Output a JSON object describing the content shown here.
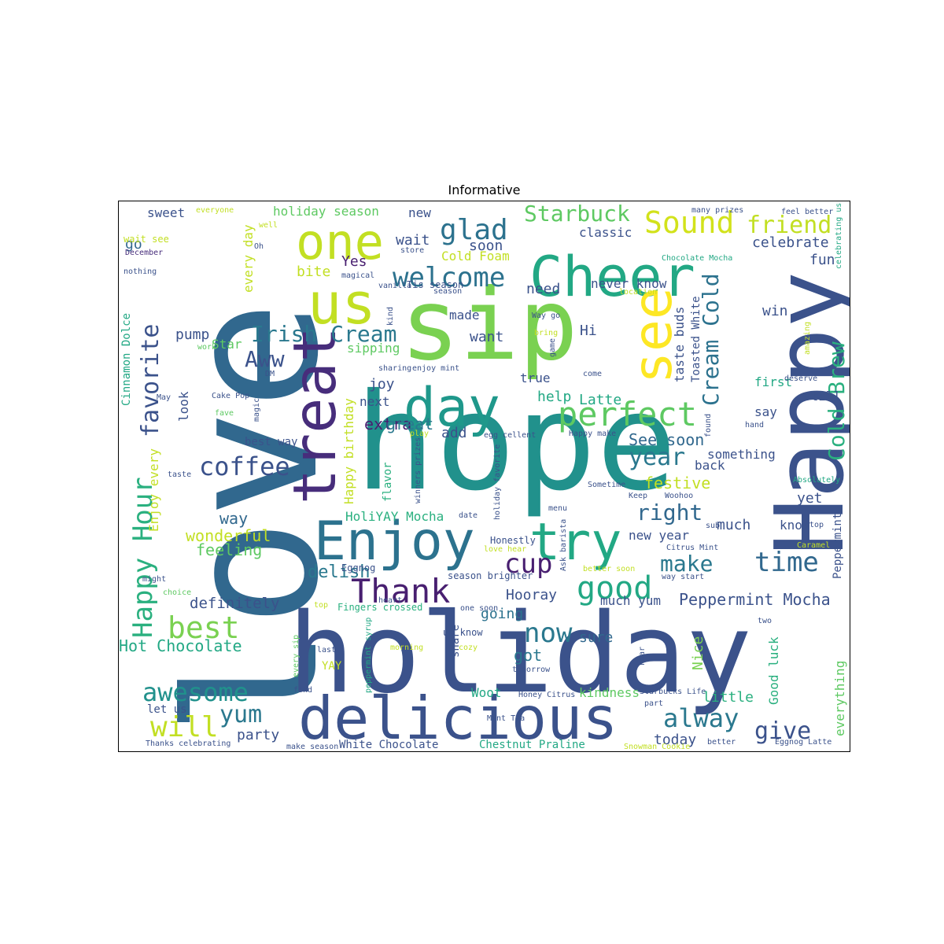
{
  "chart_data": {
    "type": "wordcloud",
    "title": "Informative",
    "colormap": [
      "#440154",
      "#3b528b",
      "#21918c",
      "#5ec962",
      "#fde725"
    ],
    "words": [
      {
        "text": "love",
        "color": "#31688e"
      },
      {
        "text": "hope",
        "color": "#21918c"
      },
      {
        "text": "holiday",
        "color": "#3b528b"
      },
      {
        "text": "sip",
        "color": "#7ad151"
      },
      {
        "text": "Happy",
        "color": "#3b528b"
      },
      {
        "text": "delicious",
        "color": "#3b528b"
      },
      {
        "text": "treat",
        "color": "#472d7b"
      },
      {
        "text": "Cheer",
        "color": "#22a884"
      },
      {
        "text": "Enjoy",
        "color": "#2c728e"
      },
      {
        "text": "day",
        "color": "#1f988b"
      },
      {
        "text": "see",
        "color": "#fde725"
      },
      {
        "text": "one",
        "color": "#c2df23"
      },
      {
        "text": "us",
        "color": "#c2df23"
      },
      {
        "text": "try",
        "color": "#22a884"
      },
      {
        "text": "perfect",
        "color": "#5ec962"
      },
      {
        "text": "good",
        "color": "#22a884"
      },
      {
        "text": "Thank",
        "color": "#481f70"
      },
      {
        "text": "Happy Hour",
        "color": "#2ab07f"
      },
      {
        "text": "Sound",
        "color": "#d2e21b"
      },
      {
        "text": "glad",
        "color": "#2c728e"
      },
      {
        "text": "welcome",
        "color": "#2c728e"
      },
      {
        "text": "coffee",
        "color": "#3b528b"
      },
      {
        "text": "favorite",
        "color": "#3b528b"
      },
      {
        "text": "Irish Cream",
        "color": "#2a788e"
      },
      {
        "text": "Cold Brew",
        "color": "#2ab07f"
      },
      {
        "text": "Cream Cold",
        "color": "#2c728e"
      },
      {
        "text": "time",
        "color": "#31688e"
      },
      {
        "text": "best",
        "color": "#7ad151"
      },
      {
        "text": "now",
        "color": "#2a788e"
      },
      {
        "text": "awesome",
        "color": "#21918c"
      },
      {
        "text": "will",
        "color": "#c2df23"
      },
      {
        "text": "yum",
        "color": "#2a788e"
      },
      {
        "text": "alway",
        "color": "#2a788e"
      },
      {
        "text": "cup",
        "color": "#481f70"
      },
      {
        "text": "year",
        "color": "#2a788e"
      },
      {
        "text": "right",
        "color": "#31688e"
      },
      {
        "text": "make",
        "color": "#2a788e"
      },
      {
        "text": "friend",
        "color": "#c2df23"
      },
      {
        "text": "Starbuck",
        "color": "#5ec962"
      },
      {
        "text": "give",
        "color": "#3b528b"
      },
      {
        "text": "Aww",
        "color": "#3b528b"
      },
      {
        "text": "Hot Chocolate",
        "color": "#22a884"
      },
      {
        "text": "Peppermint Mocha",
        "color": "#3b528b"
      },
      {
        "text": "definitely",
        "color": "#3b528b"
      },
      {
        "text": "delish",
        "color": "#2a788e"
      },
      {
        "text": "wonderful",
        "color": "#c2df23"
      },
      {
        "text": "feeling",
        "color": "#5ec962"
      },
      {
        "text": "way",
        "color": "#31688e"
      },
      {
        "text": "party",
        "color": "#3b528b"
      },
      {
        "text": "festive",
        "color": "#c2df23"
      },
      {
        "text": "See soon",
        "color": "#31688e"
      },
      {
        "text": "extra",
        "color": "#481f70"
      },
      {
        "text": "great",
        "color": "#2a788e"
      },
      {
        "text": "add",
        "color": "#3b528b"
      },
      {
        "text": "Hooray",
        "color": "#3b528b"
      },
      {
        "text": "going",
        "color": "#2c728e"
      },
      {
        "text": "got",
        "color": "#2a788e"
      },
      {
        "text": "sure",
        "color": "#31688e"
      },
      {
        "text": "today",
        "color": "#3b528b"
      },
      {
        "text": "little",
        "color": "#2ab07f"
      },
      {
        "text": "kindness",
        "color": "#5ec962"
      },
      {
        "text": "everything",
        "color": "#5ec962"
      },
      {
        "text": "Good luck",
        "color": "#2ab07f"
      },
      {
        "text": "Nice",
        "color": "#7ad151"
      },
      {
        "text": "much yum",
        "color": "#3b528b"
      },
      {
        "text": "much",
        "color": "#3b528b"
      },
      {
        "text": "know",
        "color": "#3b528b"
      },
      {
        "text": "yet",
        "color": "#3b528b"
      },
      {
        "text": "new year",
        "color": "#3b528b"
      },
      {
        "text": "back",
        "color": "#3b528b"
      },
      {
        "text": "something",
        "color": "#3b528b"
      },
      {
        "text": "say",
        "color": "#3b528b"
      },
      {
        "text": "still",
        "color": "#3b528b"
      },
      {
        "text": "first",
        "color": "#22a884"
      },
      {
        "text": "win",
        "color": "#3b528b"
      },
      {
        "text": "fun",
        "color": "#3b528b"
      },
      {
        "text": "celebrate",
        "color": "#3b528b"
      },
      {
        "text": "classic",
        "color": "#3b528b"
      },
      {
        "text": "never know",
        "color": "#3b528b"
      },
      {
        "text": "taste buds",
        "color": "#3b528b"
      },
      {
        "text": "Toasted White",
        "color": "#3b528b"
      },
      {
        "text": "Latte",
        "color": "#22a884"
      },
      {
        "text": "help",
        "color": "#22a884"
      },
      {
        "text": "true",
        "color": "#3b528b"
      },
      {
        "text": "need",
        "color": "#3b528b"
      },
      {
        "text": "Hi",
        "color": "#3b528b"
      },
      {
        "text": "want",
        "color": "#3b528b"
      },
      {
        "text": "made",
        "color": "#3b528b"
      },
      {
        "text": "soon",
        "color": "#3b528b"
      },
      {
        "text": "Cold Foam",
        "color": "#c2df23"
      },
      {
        "text": "wait",
        "color": "#3b528b"
      },
      {
        "text": "new",
        "color": "#3b528b"
      },
      {
        "text": "Yes",
        "color": "#481f70"
      },
      {
        "text": "bite",
        "color": "#c2df23"
      },
      {
        "text": "holiday season",
        "color": "#5ec962"
      },
      {
        "text": "every day",
        "color": "#c2df23"
      },
      {
        "text": "sweet",
        "color": "#3b528b"
      },
      {
        "text": "go",
        "color": "#31688e"
      },
      {
        "text": "pump",
        "color": "#3b528b"
      },
      {
        "text": "Star",
        "color": "#5ec962"
      },
      {
        "text": "sipping",
        "color": "#5ec962"
      },
      {
        "text": "joy",
        "color": "#3b528b"
      },
      {
        "text": "next",
        "color": "#3b528b"
      },
      {
        "text": "look",
        "color": "#3b528b"
      },
      {
        "text": "best way",
        "color": "#3b528b"
      },
      {
        "text": "let us",
        "color": "#3b528b"
      },
      {
        "text": "Happy birthday",
        "color": "#c2df23"
      },
      {
        "text": "Enjoy every",
        "color": "#c2df23"
      },
      {
        "text": "Cinnamon Dolce",
        "color": "#22a884"
      },
      {
        "text": "HoliYAY Mocha",
        "color": "#2ab07f"
      },
      {
        "text": "flavor",
        "color": "#2ab07f"
      },
      {
        "text": "White Chocolate",
        "color": "#3b528b"
      },
      {
        "text": "Chestnut Praline",
        "color": "#22a884"
      },
      {
        "text": "Woot",
        "color": "#22a884"
      },
      {
        "text": "share",
        "color": "#3b528b"
      },
      {
        "text": "YAY",
        "color": "#c2df23"
      },
      {
        "text": "Fingers crossed",
        "color": "#2ab07f"
      },
      {
        "text": "Peppermint",
        "color": "#3b528b"
      },
      {
        "text": "Eggnog",
        "color": "#3b528b"
      },
      {
        "text": "Honestly",
        "color": "#3b528b"
      },
      {
        "text": "season brighter",
        "color": "#3b528b"
      },
      {
        "text": "everyone",
        "color": "#c2df23"
      },
      {
        "text": "well",
        "color": "#c2df23"
      },
      {
        "text": "wait see",
        "color": "#c2df23"
      },
      {
        "text": "December",
        "color": "#472d7b"
      },
      {
        "text": "nothing",
        "color": "#3b528b"
      },
      {
        "text": "Oh",
        "color": "#3b528b"
      },
      {
        "text": "store",
        "color": "#3b528b"
      },
      {
        "text": "magical",
        "color": "#3b528b"
      },
      {
        "text": "vanilla",
        "color": "#3b528b"
      },
      {
        "text": "Tis season",
        "color": "#3b528b"
      },
      {
        "text": "season",
        "color": "#3b528b"
      },
      {
        "text": "kind",
        "color": "#3b528b"
      },
      {
        "text": "bring",
        "color": "#c2df23"
      },
      {
        "text": "game",
        "color": "#3b528b"
      },
      {
        "text": "location",
        "color": "#c2df23"
      },
      {
        "text": "Way go",
        "color": "#3b528b"
      },
      {
        "text": "amazing",
        "color": "#c2df23"
      },
      {
        "text": "many prizes",
        "color": "#3b528b"
      },
      {
        "text": "feel better",
        "color": "#3b528b"
      },
      {
        "text": "celebrating us",
        "color": "#22a884"
      },
      {
        "text": "Chocolate Mocha",
        "color": "#22a884"
      },
      {
        "text": "work",
        "color": "#5ec962"
      },
      {
        "text": "DM",
        "color": "#3b528b"
      },
      {
        "text": "sharing",
        "color": "#3b528b"
      },
      {
        "text": "enjoy mint",
        "color": "#3b528b"
      },
      {
        "text": "come",
        "color": "#3b528b"
      },
      {
        "text": "deserve",
        "color": "#3b528b"
      },
      {
        "text": "hand",
        "color": "#3b528b"
      },
      {
        "text": "Absolutely",
        "color": "#22a884"
      },
      {
        "text": "May",
        "color": "#3b528b"
      },
      {
        "text": "Cake Pop",
        "color": "#3b528b"
      },
      {
        "text": "magic",
        "color": "#3b528b"
      },
      {
        "text": "fave",
        "color": "#5ec962"
      },
      {
        "text": "play",
        "color": "#c2df23"
      },
      {
        "text": "egg cellent",
        "color": "#3b528b"
      },
      {
        "text": "Happy make",
        "color": "#3b528b"
      },
      {
        "text": "found",
        "color": "#3b528b"
      },
      {
        "text": "taste",
        "color": "#3b528b"
      },
      {
        "text": "winners prizes",
        "color": "#3b528b"
      },
      {
        "text": "holiday favorite",
        "color": "#3b528b"
      },
      {
        "text": "Sometime",
        "color": "#3b528b"
      },
      {
        "text": "Keep",
        "color": "#3b528b"
      },
      {
        "text": "Woohoo",
        "color": "#3b528b"
      },
      {
        "text": "date",
        "color": "#3b528b"
      },
      {
        "text": "menu",
        "color": "#3b528b"
      },
      {
        "text": "Ask barista",
        "color": "#3b528b"
      },
      {
        "text": "love hear",
        "color": "#c2df23"
      },
      {
        "text": "sub",
        "color": "#3b528b"
      },
      {
        "text": "Citrus Mint",
        "color": "#3b528b"
      },
      {
        "text": "stop",
        "color": "#3b528b"
      },
      {
        "text": "Caramel",
        "color": "#c2df23"
      },
      {
        "text": "might",
        "color": "#3b528b"
      },
      {
        "text": "choice",
        "color": "#5ec962"
      },
      {
        "text": "heart",
        "color": "#3b528b"
      },
      {
        "text": "better soon",
        "color": "#c2df23"
      },
      {
        "text": "way start",
        "color": "#3b528b"
      },
      {
        "text": "top",
        "color": "#c2df23"
      },
      {
        "text": "one soon",
        "color": "#3b528b"
      },
      {
        "text": "two",
        "color": "#3b528b"
      },
      {
        "text": "last",
        "color": "#3b528b"
      },
      {
        "text": "morning",
        "color": "#c2df23"
      },
      {
        "text": "cozy",
        "color": "#c2df23"
      },
      {
        "text": "us know",
        "color": "#3b528b"
      },
      {
        "text": "every sip",
        "color": "#5ec962"
      },
      {
        "text": "peppermint syrup",
        "color": "#22a884"
      },
      {
        "text": "tomorrow",
        "color": "#3b528b"
      },
      {
        "text": "hear",
        "color": "#3b528b"
      },
      {
        "text": "find",
        "color": "#3b528b"
      },
      {
        "text": "Honey Citrus",
        "color": "#3b528b"
      },
      {
        "text": "Starbucks Life",
        "color": "#3b528b"
      },
      {
        "text": "part",
        "color": "#3b528b"
      },
      {
        "text": "Mint Tea",
        "color": "#3b528b"
      },
      {
        "text": "Thanks celebrating",
        "color": "#3b528b"
      },
      {
        "text": "make season",
        "color": "#3b528b"
      },
      {
        "text": "Snowman Cookie",
        "color": "#c2df23"
      },
      {
        "text": "better",
        "color": "#3b528b"
      },
      {
        "text": "Eggnog Latte",
        "color": "#3b528b"
      }
    ]
  }
}
